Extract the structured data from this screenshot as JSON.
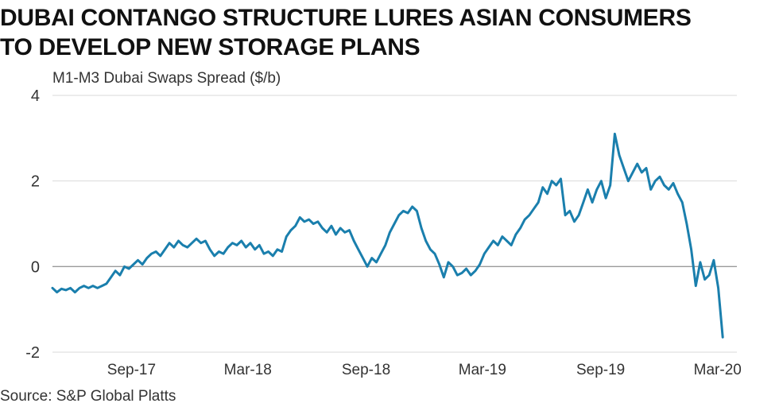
{
  "title_lines": [
    "DUBAI CONTANGO STRUCTURE LURES ASIAN CONSUMERS",
    "TO DEVELOP NEW STORAGE PLANS"
  ],
  "source": "Source: S&P Global Platts",
  "colors": {
    "line": "#1a7fad",
    "grid": "#d9d9d9",
    "zero": "#9a9a9a",
    "text": "#333333"
  },
  "chart_data": {
    "type": "line",
    "title": "DUBAI CONTANGO STRUCTURE LURES ASIAN CONSUMERS TO DEVELOP NEW STORAGE PLANS",
    "ylabel": "M1-M3 Dubai Swaps Spread ($/b)",
    "xlabel": "",
    "ylim": [
      -2,
      4
    ],
    "yticks": [
      4,
      2,
      0,
      -2
    ],
    "xlim": [
      "2017-05-01",
      "2020-03-31"
    ],
    "xticks": [
      {
        "date": "2017-09-01",
        "label": "Sep-17"
      },
      {
        "date": "2018-03-01",
        "label": "Mar-18"
      },
      {
        "date": "2018-09-01",
        "label": "Sep-18"
      },
      {
        "date": "2019-03-01",
        "label": "Mar-19"
      },
      {
        "date": "2019-09-01",
        "label": "Sep-19"
      },
      {
        "date": "2020-03-01",
        "label": "Mar-20"
      }
    ],
    "grid": true,
    "series": [
      {
        "values": [
          [
            "2017-05-01",
            -0.5
          ],
          [
            "2017-05-08",
            -0.6
          ],
          [
            "2017-05-15",
            -0.52
          ],
          [
            "2017-05-22",
            -0.55
          ],
          [
            "2017-05-29",
            -0.5
          ],
          [
            "2017-06-05",
            -0.6
          ],
          [
            "2017-06-12",
            -0.5
          ],
          [
            "2017-06-19",
            -0.45
          ],
          [
            "2017-06-26",
            -0.5
          ],
          [
            "2017-07-03",
            -0.45
          ],
          [
            "2017-07-10",
            -0.5
          ],
          [
            "2017-07-17",
            -0.45
          ],
          [
            "2017-07-24",
            -0.4
          ],
          [
            "2017-07-31",
            -0.25
          ],
          [
            "2017-08-07",
            -0.1
          ],
          [
            "2017-08-14",
            -0.2
          ],
          [
            "2017-08-21",
            0.0
          ],
          [
            "2017-08-28",
            -0.05
          ],
          [
            "2017-09-04",
            0.05
          ],
          [
            "2017-09-11",
            0.15
          ],
          [
            "2017-09-18",
            0.05
          ],
          [
            "2017-09-25",
            0.2
          ],
          [
            "2017-10-02",
            0.3
          ],
          [
            "2017-10-09",
            0.35
          ],
          [
            "2017-10-16",
            0.25
          ],
          [
            "2017-10-23",
            0.4
          ],
          [
            "2017-10-30",
            0.55
          ],
          [
            "2017-11-06",
            0.45
          ],
          [
            "2017-11-13",
            0.6
          ],
          [
            "2017-11-20",
            0.5
          ],
          [
            "2017-11-27",
            0.45
          ],
          [
            "2017-12-04",
            0.55
          ],
          [
            "2017-12-11",
            0.65
          ],
          [
            "2017-12-18",
            0.55
          ],
          [
            "2017-12-25",
            0.6
          ],
          [
            "2018-01-01",
            0.4
          ],
          [
            "2018-01-08",
            0.25
          ],
          [
            "2018-01-15",
            0.35
          ],
          [
            "2018-01-22",
            0.3
          ],
          [
            "2018-01-29",
            0.45
          ],
          [
            "2018-02-05",
            0.55
          ],
          [
            "2018-02-12",
            0.5
          ],
          [
            "2018-02-19",
            0.6
          ],
          [
            "2018-02-26",
            0.45
          ],
          [
            "2018-03-05",
            0.55
          ],
          [
            "2018-03-12",
            0.4
          ],
          [
            "2018-03-19",
            0.5
          ],
          [
            "2018-03-26",
            0.3
          ],
          [
            "2018-04-02",
            0.35
          ],
          [
            "2018-04-09",
            0.25
          ],
          [
            "2018-04-16",
            0.4
          ],
          [
            "2018-04-23",
            0.35
          ],
          [
            "2018-04-30",
            0.7
          ],
          [
            "2018-05-07",
            0.85
          ],
          [
            "2018-05-14",
            0.95
          ],
          [
            "2018-05-21",
            1.15
          ],
          [
            "2018-05-28",
            1.05
          ],
          [
            "2018-06-04",
            1.1
          ],
          [
            "2018-06-11",
            1.0
          ],
          [
            "2018-06-18",
            1.05
          ],
          [
            "2018-06-25",
            0.9
          ],
          [
            "2018-07-02",
            0.8
          ],
          [
            "2018-07-09",
            0.95
          ],
          [
            "2018-07-16",
            0.75
          ],
          [
            "2018-07-23",
            0.9
          ],
          [
            "2018-07-30",
            0.8
          ],
          [
            "2018-08-06",
            0.85
          ],
          [
            "2018-08-13",
            0.6
          ],
          [
            "2018-08-20",
            0.4
          ],
          [
            "2018-08-27",
            0.2
          ],
          [
            "2018-09-03",
            0.0
          ],
          [
            "2018-09-10",
            0.2
          ],
          [
            "2018-09-17",
            0.1
          ],
          [
            "2018-09-24",
            0.3
          ],
          [
            "2018-10-01",
            0.5
          ],
          [
            "2018-10-08",
            0.8
          ],
          [
            "2018-10-15",
            1.0
          ],
          [
            "2018-10-22",
            1.2
          ],
          [
            "2018-10-29",
            1.3
          ],
          [
            "2018-11-05",
            1.25
          ],
          [
            "2018-11-12",
            1.4
          ],
          [
            "2018-11-19",
            1.3
          ],
          [
            "2018-11-26",
            0.9
          ],
          [
            "2018-12-03",
            0.6
          ],
          [
            "2018-12-10",
            0.4
          ],
          [
            "2018-12-17",
            0.3
          ],
          [
            "2018-12-24",
            0.05
          ],
          [
            "2018-12-31",
            -0.25
          ],
          [
            "2019-01-07",
            0.1
          ],
          [
            "2019-01-14",
            0.0
          ],
          [
            "2019-01-21",
            -0.2
          ],
          [
            "2019-01-28",
            -0.15
          ],
          [
            "2019-02-04",
            -0.05
          ],
          [
            "2019-02-11",
            -0.2
          ],
          [
            "2019-02-18",
            -0.1
          ],
          [
            "2019-02-25",
            0.05
          ],
          [
            "2019-03-04",
            0.3
          ],
          [
            "2019-03-11",
            0.45
          ],
          [
            "2019-03-18",
            0.6
          ],
          [
            "2019-03-25",
            0.5
          ],
          [
            "2019-04-01",
            0.7
          ],
          [
            "2019-04-08",
            0.6
          ],
          [
            "2019-04-15",
            0.5
          ],
          [
            "2019-04-22",
            0.75
          ],
          [
            "2019-04-29",
            0.9
          ],
          [
            "2019-05-06",
            1.1
          ],
          [
            "2019-05-13",
            1.2
          ],
          [
            "2019-05-20",
            1.35
          ],
          [
            "2019-05-27",
            1.5
          ],
          [
            "2019-06-03",
            1.85
          ],
          [
            "2019-06-10",
            1.7
          ],
          [
            "2019-06-17",
            2.0
          ],
          [
            "2019-06-24",
            1.9
          ],
          [
            "2019-07-01",
            2.05
          ],
          [
            "2019-07-08",
            1.2
          ],
          [
            "2019-07-15",
            1.3
          ],
          [
            "2019-07-22",
            1.05
          ],
          [
            "2019-07-29",
            1.2
          ],
          [
            "2019-08-05",
            1.5
          ],
          [
            "2019-08-12",
            1.8
          ],
          [
            "2019-08-19",
            1.5
          ],
          [
            "2019-08-26",
            1.8
          ],
          [
            "2019-09-02",
            2.0
          ],
          [
            "2019-09-09",
            1.6
          ],
          [
            "2019-09-16",
            1.9
          ],
          [
            "2019-09-23",
            3.1
          ],
          [
            "2019-09-30",
            2.6
          ],
          [
            "2019-10-07",
            2.3
          ],
          [
            "2019-10-14",
            2.0
          ],
          [
            "2019-10-21",
            2.2
          ],
          [
            "2019-10-28",
            2.4
          ],
          [
            "2019-11-04",
            2.2
          ],
          [
            "2019-11-11",
            2.3
          ],
          [
            "2019-11-18",
            1.8
          ],
          [
            "2019-11-25",
            2.0
          ],
          [
            "2019-12-02",
            2.1
          ],
          [
            "2019-12-09",
            1.9
          ],
          [
            "2019-12-16",
            1.8
          ],
          [
            "2019-12-23",
            1.95
          ],
          [
            "2019-12-30",
            1.7
          ],
          [
            "2020-01-06",
            1.5
          ],
          [
            "2020-01-13",
            1.0
          ],
          [
            "2020-01-20",
            0.4
          ],
          [
            "2020-01-27",
            -0.45
          ],
          [
            "2020-02-03",
            0.1
          ],
          [
            "2020-02-10",
            -0.3
          ],
          [
            "2020-02-17",
            -0.2
          ],
          [
            "2020-02-24",
            0.15
          ],
          [
            "2020-03-02",
            -0.5
          ],
          [
            "2020-03-09",
            -1.65
          ]
        ]
      }
    ]
  }
}
